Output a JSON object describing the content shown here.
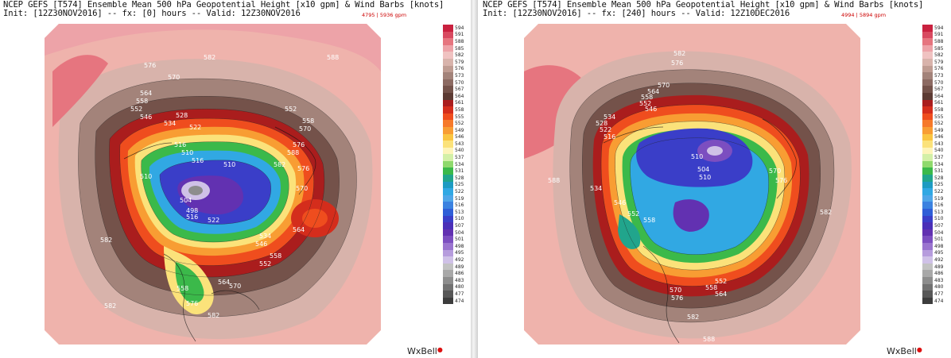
{
  "left": {
    "title_line1": "NCEP GEFS [T574] Ensemble Mean 500 hPa Geopotential Height [x10 gpm] & Wind Barbs [knots]",
    "title_line2": "Init: [12Z30NOV2016] -- fx: [0] hours -- Valid: 12Z30NOV2016",
    "range_label": "4795 | 5936 gpm",
    "logo": "WxBell",
    "contour_labels": [
      "582",
      "588",
      "576",
      "570",
      "564",
      "558",
      "552",
      "546",
      "528",
      "534",
      "522",
      "516",
      "510",
      "510",
      "516",
      "510",
      "504",
      "498",
      "516",
      "522",
      "534",
      "546",
      "552",
      "558",
      "564",
      "570",
      "576",
      "582",
      "588",
      "570",
      "576",
      "558",
      "552",
      "564",
      "570",
      "558",
      "576",
      "582",
      "582",
      "582"
    ]
  },
  "right": {
    "title_line1": "NCEP GEFS [T574] Ensemble Mean 500 hPa Geopotential Height [x10 gpm] & Wind Barbs [knots]",
    "title_line2": "Init: [12Z30NOV2016] -- fx: [240] hours -- Valid: 12Z10DEC2016",
    "range_label": "4994 | 5894 gpm",
    "logo": "WxBell",
    "contour_labels": [
      "582",
      "576",
      "570",
      "564",
      "558",
      "552",
      "546",
      "534",
      "528",
      "522",
      "516",
      "510",
      "504",
      "510",
      "564",
      "558",
      "552",
      "570",
      "576",
      "582",
      "588",
      "534",
      "546",
      "552",
      "558",
      "570",
      "576",
      "582",
      "588"
    ]
  },
  "colorbar": {
    "labels": [
      "594",
      "591",
      "588",
      "585",
      "582",
      "579",
      "576",
      "573",
      "570",
      "567",
      "564",
      "561",
      "558",
      "555",
      "552",
      "549",
      "546",
      "543",
      "540",
      "537",
      "534",
      "531",
      "528",
      "525",
      "522",
      "519",
      "516",
      "513",
      "510",
      "507",
      "504",
      "501",
      "498",
      "495",
      "492",
      "489",
      "486",
      "483",
      "480",
      "477",
      "474"
    ],
    "colors": [
      "#c9213f",
      "#d84a60",
      "#e6757f",
      "#eda3a8",
      "#f0c2c1",
      "#d8b3ab",
      "#bf9c92",
      "#a3837a",
      "#8c6a62",
      "#74524a",
      "#5c3a33",
      "#aa1d1d",
      "#d42d1c",
      "#ef4d1e",
      "#f6792a",
      "#f89d33",
      "#fac541",
      "#fbe27a",
      "#fdf4b9",
      "#d3f0a7",
      "#8fd96c",
      "#3bb94a",
      "#21a58c",
      "#1e9bc2",
      "#31a8e3",
      "#4fa6e8",
      "#3b82e0",
      "#2f5ed7",
      "#3a3ec8",
      "#4a2fb8",
      "#6231b1",
      "#7c4ec0",
      "#9a74cf",
      "#b69cdd",
      "#cfc1e7",
      "#c2c2c2",
      "#a8a8a8",
      "#8d8d8d",
      "#727272",
      "#575757",
      "#3c3c3c"
    ]
  }
}
